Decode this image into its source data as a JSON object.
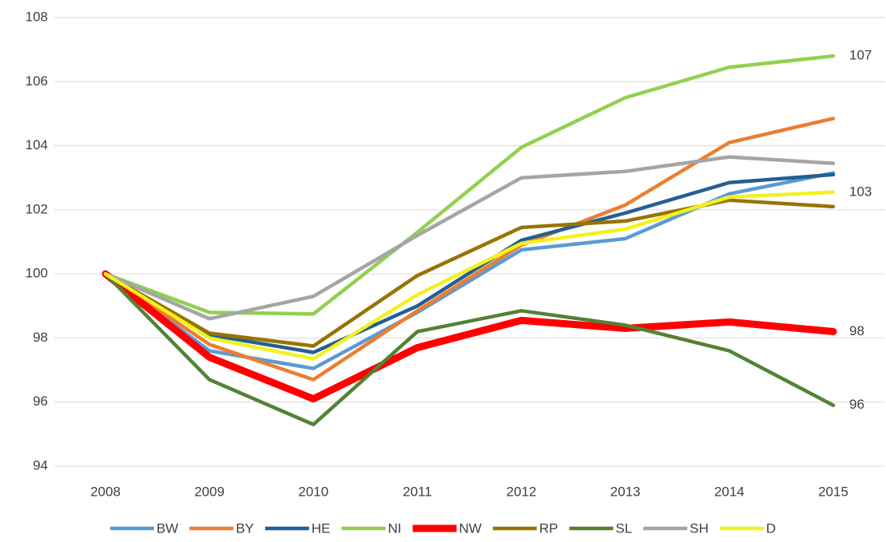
{
  "chart_data": {
    "type": "line",
    "categories": [
      "2008",
      "2009",
      "2010",
      "2011",
      "2012",
      "2013",
      "2014",
      "2015"
    ],
    "ylim": [
      94,
      108
    ],
    "yticks": [
      94,
      96,
      98,
      100,
      102,
      104,
      106,
      108
    ],
    "grid": true,
    "legend": "bottom",
    "series": [
      {
        "name": "BW",
        "color": "#5B9BD5",
        "linewidth": 4.5,
        "values": [
          100,
          97.6,
          97.05,
          98.8,
          100.75,
          101.1,
          102.5,
          103.15
        ]
      },
      {
        "name": "BY",
        "color": "#ED7D31",
        "linewidth": 4.5,
        "values": [
          100,
          97.8,
          96.7,
          98.85,
          100.9,
          102.15,
          104.1,
          104.85
        ]
      },
      {
        "name": "HE",
        "color": "#255E91",
        "linewidth": 4.5,
        "values": [
          100,
          98.1,
          97.55,
          99.0,
          101.05,
          101.9,
          102.85,
          103.1
        ]
      },
      {
        "name": "NI",
        "color": "#92D050",
        "linewidth": 4.5,
        "values": [
          100,
          98.8,
          98.75,
          101.3,
          103.95,
          105.5,
          106.45,
          106.8
        ],
        "value_labels": [
          null,
          null,
          null,
          null,
          null,
          null,
          null,
          "107"
        ]
      },
      {
        "name": "NW",
        "color": "#FF0000",
        "linewidth": 9,
        "values": [
          100,
          97.4,
          96.1,
          97.7,
          98.55,
          98.3,
          98.5,
          98.2
        ],
        "value_labels": [
          null,
          null,
          null,
          null,
          null,
          null,
          null,
          "98"
        ]
      },
      {
        "name": "RP",
        "color": "#997300",
        "linewidth": 4.5,
        "values": [
          100,
          98.15,
          97.75,
          99.95,
          101.45,
          101.65,
          102.3,
          102.1
        ]
      },
      {
        "name": "SL",
        "color": "#548235",
        "linewidth": 4.5,
        "values": [
          100,
          96.7,
          95.3,
          98.2,
          98.85,
          98.4,
          97.6,
          95.9
        ],
        "value_labels": [
          null,
          null,
          null,
          null,
          null,
          null,
          null,
          "96"
        ]
      },
      {
        "name": "SH",
        "color": "#A5A5A5",
        "linewidth": 4.5,
        "values": [
          100,
          98.6,
          99.3,
          101.2,
          103.0,
          103.2,
          103.65,
          103.45
        ]
      },
      {
        "name": "D",
        "color": "#F2F21E",
        "linewidth": 4.5,
        "values": [
          100,
          98.0,
          97.35,
          99.35,
          100.95,
          101.4,
          102.4,
          102.55
        ],
        "value_labels": [
          null,
          null,
          null,
          null,
          null,
          null,
          null,
          "103"
        ]
      }
    ]
  }
}
